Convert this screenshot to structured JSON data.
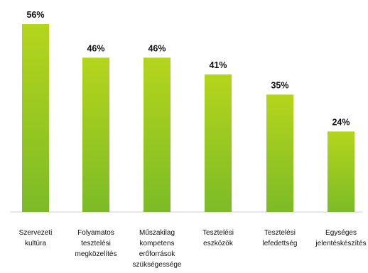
{
  "chart_data": {
    "type": "bar",
    "categories": [
      [
        "Szervezeti",
        "kultúra"
      ],
      [
        "Folyamatos",
        "tesztelési",
        "megközelítés"
      ],
      [
        "Műszakilag",
        "kompetens",
        "erőforrások",
        "szükségessége"
      ],
      [
        "Tesztelési",
        "eszközök"
      ],
      [
        "Tesztelési",
        "lefedettség"
      ],
      [
        "Egységes",
        "jelentéskészítés"
      ]
    ],
    "values": [
      56,
      46,
      46,
      41,
      35,
      24
    ],
    "value_labels": [
      "56%",
      "46%",
      "46%",
      "41%",
      "35%",
      "24%"
    ],
    "ylim": [
      0,
      56
    ],
    "grid": false,
    "legend": "none",
    "colors": {
      "bar_top": "#b5d51c",
      "bar_bottom": "#7cbb26",
      "baseline": "#cfcfcf",
      "text": "#111111"
    }
  }
}
